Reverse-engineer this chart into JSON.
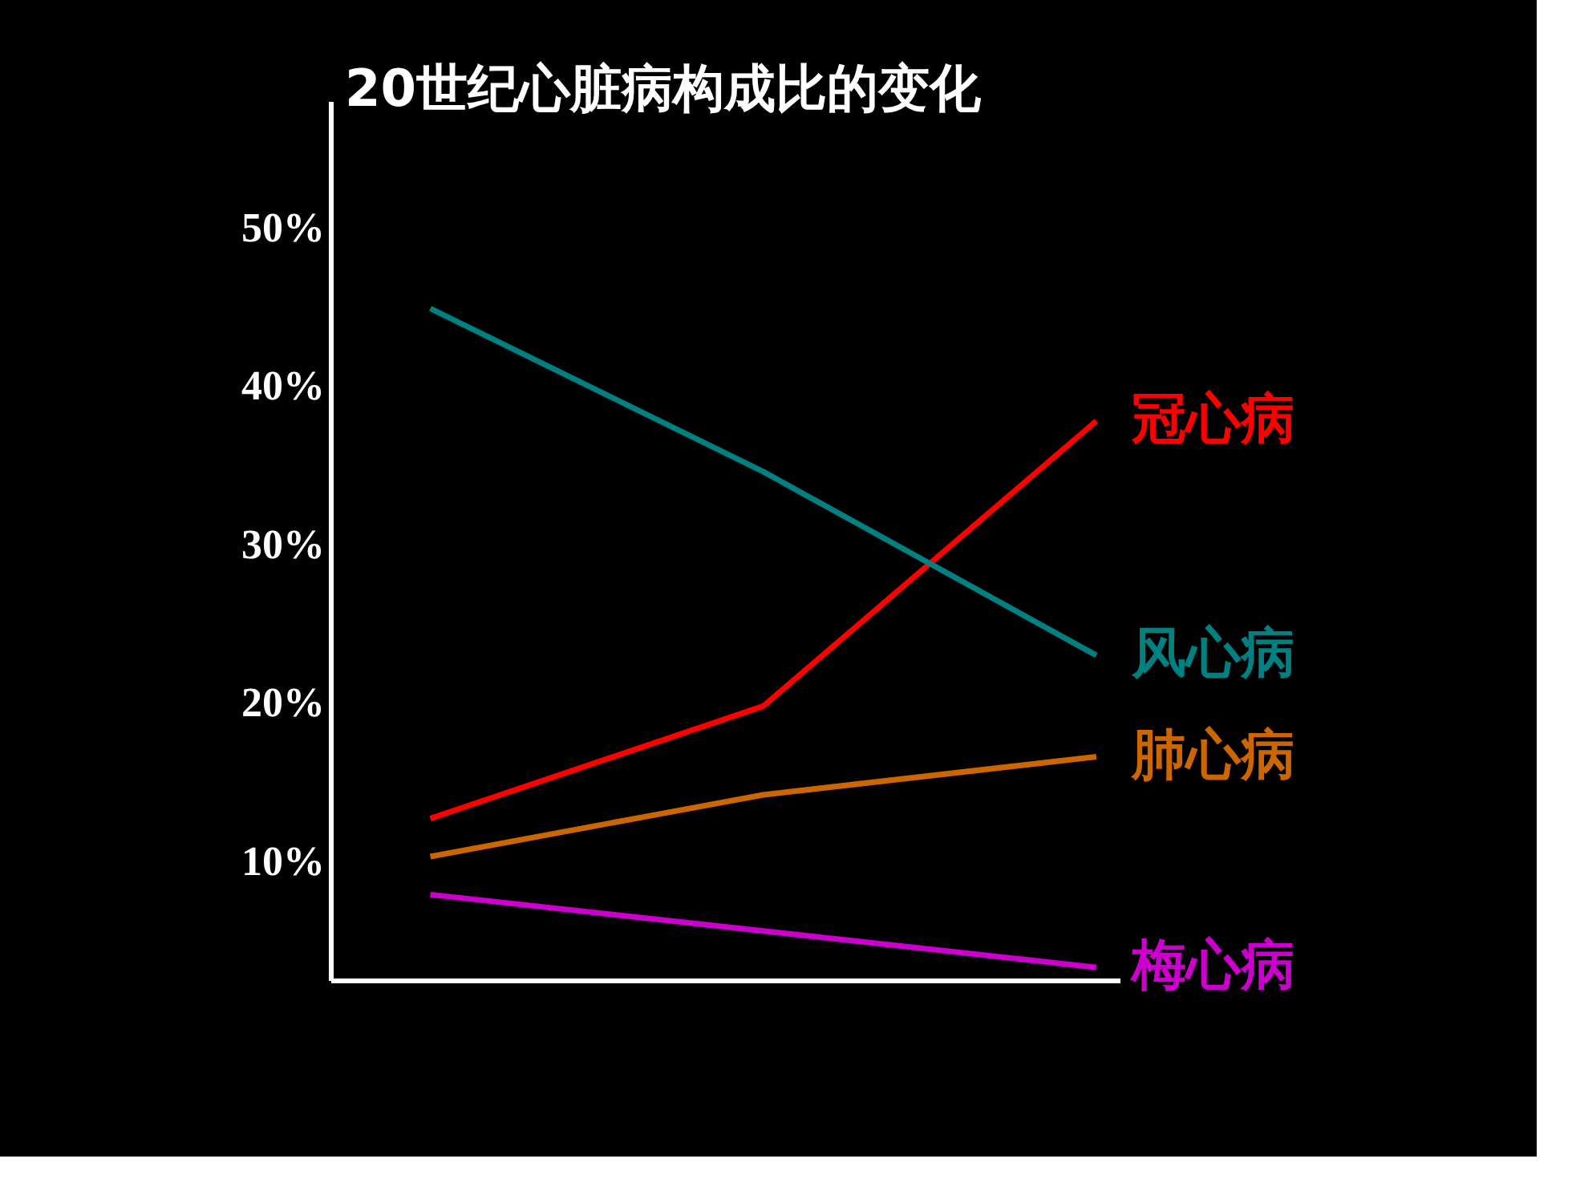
{
  "chart_data": {
    "type": "line",
    "title": "20世纪心脏病构成比的变化",
    "categories": [
      null,
      null,
      null
    ],
    "series": [
      {
        "name": "冠心病",
        "color": "#ff0000",
        "values": [
          12.7,
          19.8,
          37.8
        ]
      },
      {
        "name": "风心病",
        "color": "#008080",
        "values": [
          44.9,
          34.6,
          23.0
        ]
      },
      {
        "name": "肺心病",
        "color": "#cc6600",
        "values": [
          10.3,
          14.2,
          16.6
        ]
      },
      {
        "name": "梅心病",
        "color": "#cc00cc",
        "values": [
          7.9,
          5.6,
          3.3
        ]
      }
    ],
    "ylim": [
      2.5,
      58
    ],
    "yticks": [
      {
        "value": 10,
        "label": "10%"
      },
      {
        "value": 20,
        "label": "20%"
      },
      {
        "value": 30,
        "label": "30%"
      },
      {
        "value": 40,
        "label": "40%"
      },
      {
        "value": 50,
        "label": "50%"
      }
    ],
    "grid": false,
    "legend": false,
    "marker": "none",
    "line_style": "solid",
    "tick_labels": "y"
  }
}
